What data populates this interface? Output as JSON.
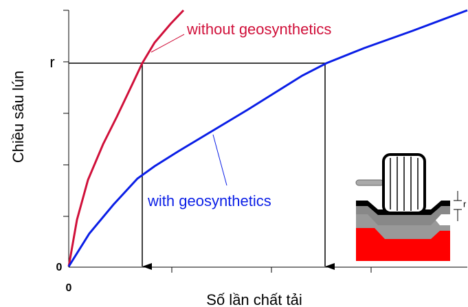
{
  "axes": {
    "x_label": "Số lần chất tải",
    "y_label": "Chiều sâu lún",
    "y_tick_top": "r",
    "y_tick_origin": "0",
    "x_tick_origin": "0"
  },
  "curves": {
    "without": "without geosynthetics",
    "with": "with geosynthetics"
  },
  "inset": {
    "depth_label": "r"
  }
}
